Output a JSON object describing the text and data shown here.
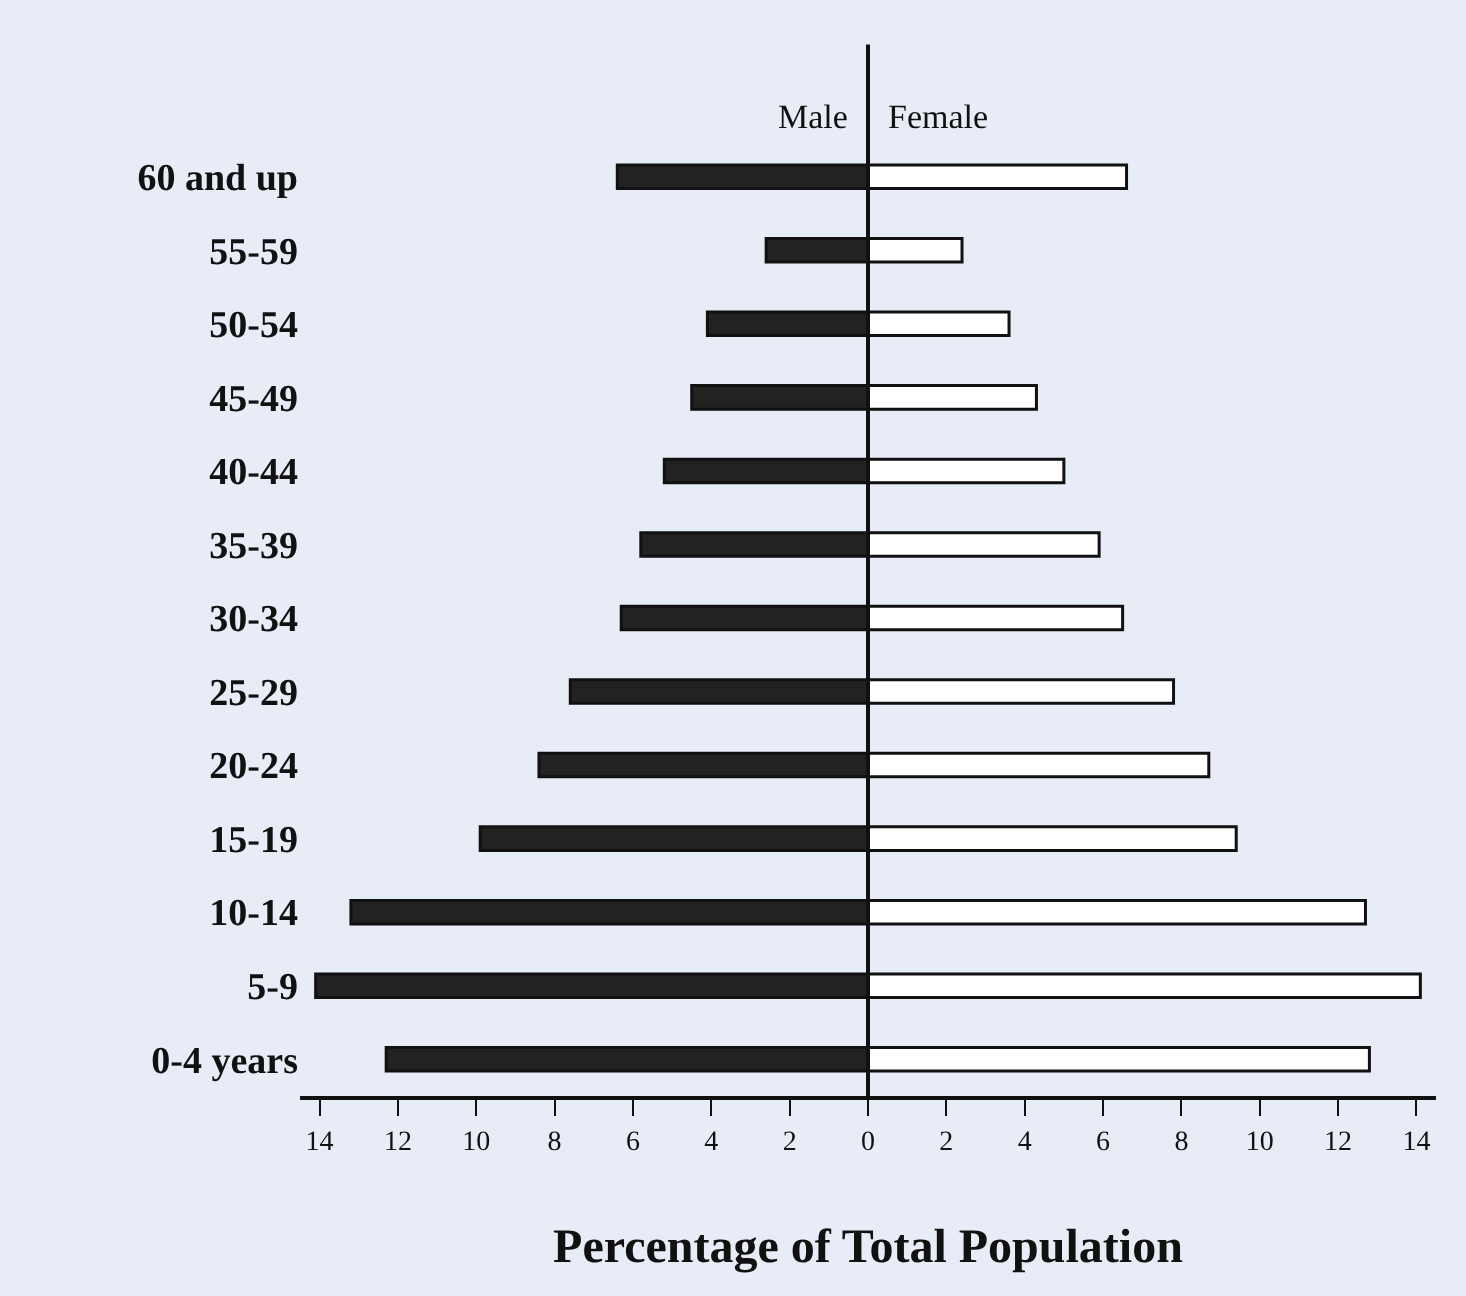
{
  "chart_data": {
    "type": "bar",
    "orientation": "horizontal",
    "xlabel": "Percentage of Total Population",
    "categories": [
      "60 and up",
      "55-59",
      "50-54",
      "45-49",
      "40-44",
      "35-39",
      "30-34",
      "25-29",
      "20-24",
      "15-19",
      "10-14",
      "5-9",
      "0-4 years"
    ],
    "series": [
      {
        "name": "Male",
        "color": "#222222",
        "values": [
          -6.4,
          -2.6,
          -4.1,
          -4.5,
          -5.2,
          -5.8,
          -6.3,
          -7.6,
          -8.4,
          -9.9,
          -13.2,
          -14.1,
          -12.3
        ]
      },
      {
        "name": "Female",
        "color": "#ffffff",
        "values": [
          6.6,
          2.4,
          3.6,
          4.3,
          5.0,
          5.9,
          6.5,
          7.8,
          8.7,
          9.4,
          12.7,
          14.1,
          12.8
        ]
      }
    ],
    "xlim": [
      -14.5,
      14.5
    ],
    "xticks": [
      {
        "value": -14,
        "label": "14"
      },
      {
        "value": -12,
        "label": "12"
      },
      {
        "value": -10,
        "label": "10"
      },
      {
        "value": -8,
        "label": "8"
      },
      {
        "value": -6,
        "label": "6"
      },
      {
        "value": -4,
        "label": "4"
      },
      {
        "value": -2,
        "label": "2"
      },
      0,
      2,
      4,
      6,
      8,
      10,
      12,
      14
    ],
    "ref_lines": [
      {
        "axis": "x",
        "value": 0,
        "color": "#111111"
      }
    ],
    "stacked": true,
    "grid": false,
    "legend": false
  }
}
